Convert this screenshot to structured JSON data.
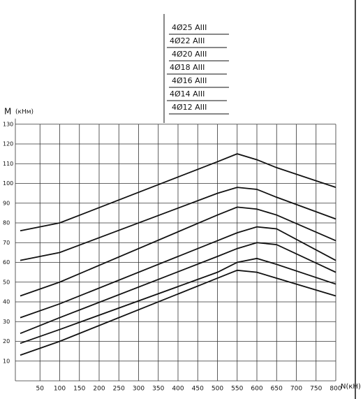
{
  "chart_data": {
    "type": "line",
    "x_label": "N(кН)",
    "y_label": "M",
    "y_unit": "(кНм)",
    "x": [
      0,
      100,
      500,
      550,
      600,
      650,
      800
    ],
    "xlim": [
      0,
      800
    ],
    "ylim": [
      0,
      130
    ],
    "xticks": [
      50,
      100,
      150,
      200,
      250,
      300,
      350,
      400,
      450,
      500,
      550,
      600,
      650,
      700,
      750,
      800
    ],
    "yticks": [
      10,
      20,
      30,
      40,
      50,
      60,
      70,
      80,
      90,
      100,
      110,
      120,
      130
    ],
    "grid": true,
    "series": [
      {
        "name": "4Ø25 AIII",
        "color": "#111111",
        "values": [
          76,
          80,
          111,
          115,
          112,
          108,
          98
        ]
      },
      {
        "name": "4Ø22 AIII",
        "color": "#111111",
        "values": [
          61,
          65,
          95,
          98,
          97,
          93,
          82
        ]
      },
      {
        "name": "4Ø20 AIII",
        "color": "#111111",
        "values": [
          43,
          50,
          84,
          88,
          87,
          84,
          71
        ]
      },
      {
        "name": "4Ø18 AIII",
        "color": "#111111",
        "values": [
          32,
          39,
          71,
          75,
          78,
          77,
          61
        ]
      },
      {
        "name": "4Ø16 AIII",
        "color": "#111111",
        "values": [
          24,
          32,
          63,
          67,
          70,
          69,
          55
        ]
      },
      {
        "name": "4Ø14 AIII",
        "color": "#111111",
        "values": [
          19,
          26,
          55,
          60,
          62,
          59,
          49
        ]
      },
      {
        "name": "4Ø12 AIII",
        "color": "#111111",
        "values": [
          13,
          20,
          52,
          56,
          55,
          52,
          43
        ]
      }
    ]
  }
}
